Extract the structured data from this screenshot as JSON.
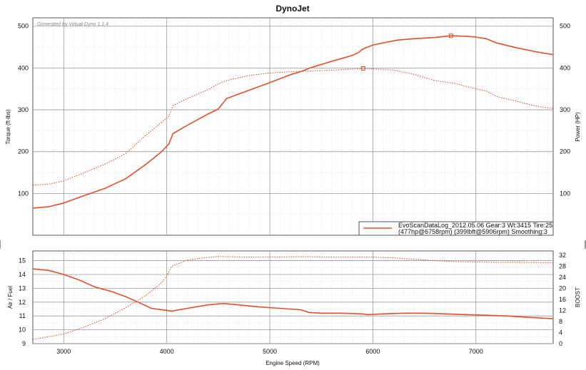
{
  "colors": {
    "series": "#e2502b",
    "grid_major": "#9a9a9a",
    "grid_minor": "#cfcfcf",
    "background": "#ffffff"
  },
  "header": {
    "title": "DynoJet"
  },
  "watermark": "Generated by Virtual Dyno 1.1.4",
  "legend": {
    "line1": "EvoScanDataLog_2012.05.06 Gear:3 Wt:3415 Tire:25",
    "line2": "(477hp@6758rpm) (399lbft@5906rpm) Smoothing:3"
  },
  "chart_data": [
    {
      "type": "line",
      "panel": "top",
      "ylabel_left": "Torque (ft-lbs)",
      "ylabel_right": "Power (HP)",
      "xlim": [
        2700,
        7750
      ],
      "ylim_left": [
        0,
        520
      ],
      "ylim_right": [
        0,
        520
      ],
      "y_ticks_left": [
        "100",
        "200",
        "300",
        "400",
        "500"
      ],
      "y_ticks_right": [
        "100",
        "200",
        "300",
        "400",
        "500"
      ],
      "grid": true,
      "legend_position": "bottom-right",
      "series": [
        {
          "axis": "left",
          "style": "solid",
          "x": [
            2700,
            2850,
            3000,
            3200,
            3400,
            3600,
            3800,
            3950,
            4020,
            4060,
            4200,
            4400,
            4500,
            4580,
            4800,
            5000,
            5200,
            5320,
            5400,
            5600,
            5800,
            5860,
            5900,
            6000,
            6200,
            6250,
            6400,
            6600,
            6758,
            6900,
            7000,
            7100,
            7200,
            7400,
            7600,
            7750
          ],
          "y": [
            65,
            68,
            77,
            95,
            112,
            135,
            170,
            200,
            218,
            243,
            263,
            290,
            302,
            327,
            347,
            365,
            384,
            393,
            401,
            416,
            430,
            437,
            445,
            455,
            465,
            467,
            470,
            473,
            477,
            476,
            474,
            470,
            460,
            448,
            438,
            432
          ]
        },
        {
          "axis": "left",
          "style": "dotted",
          "x": [
            2700,
            2850,
            3000,
            3200,
            3400,
            3600,
            3800,
            3950,
            4020,
            4060,
            4200,
            4400,
            4500,
            4580,
            4800,
            5000,
            5200,
            5400,
            5600,
            5800,
            5906,
            6000,
            6200,
            6400,
            6600,
            6800,
            7000,
            7100,
            7200,
            7400,
            7600,
            7750
          ],
          "y": [
            120,
            122,
            130,
            150,
            170,
            195,
            240,
            270,
            285,
            310,
            327,
            348,
            362,
            370,
            382,
            388,
            391,
            393,
            395,
            397,
            399,
            398,
            395,
            385,
            370,
            363,
            350,
            345,
            332,
            320,
            308,
            303
          ]
        }
      ]
    },
    {
      "type": "line",
      "panel": "bottom",
      "xlabel": "Engine Speed (RPM)",
      "ylabel_left": "Air / Fuel",
      "ylabel_right": "BOOST",
      "x_ticks": [
        "3000",
        "4000",
        "5000",
        "6000",
        "7000"
      ],
      "xlim": [
        2700,
        7750
      ],
      "ylim_left": [
        9,
        15.7
      ],
      "ylim_right": [
        0,
        33.5
      ],
      "y_ticks_left": [
        "9",
        "10",
        "11",
        "12",
        "13",
        "14",
        "15"
      ],
      "y_ticks_right": [
        "0",
        "4",
        "8",
        "12",
        "16",
        "20",
        "24",
        "28",
        "32"
      ],
      "grid": true,
      "series": [
        {
          "axis": "left",
          "style": "solid",
          "x": [
            2700,
            2850,
            3000,
            3150,
            3300,
            3450,
            3600,
            3750,
            3850,
            4000,
            4050,
            4200,
            4400,
            4550,
            4700,
            4900,
            5100,
            5300,
            5380,
            5500,
            5700,
            5900,
            5950,
            6100,
            6300,
            6500,
            6700,
            6900,
            7100,
            7300,
            7500,
            7750
          ],
          "y": [
            14.4,
            14.3,
            14.0,
            13.6,
            13.1,
            12.8,
            12.4,
            11.9,
            11.55,
            11.4,
            11.35,
            11.55,
            11.8,
            11.9,
            11.8,
            11.65,
            11.55,
            11.45,
            11.25,
            11.2,
            11.2,
            11.15,
            11.1,
            11.15,
            11.2,
            11.2,
            11.15,
            11.1,
            11.05,
            11.0,
            10.9,
            10.8
          ]
        },
        {
          "axis": "right",
          "style": "dotted",
          "x": [
            2700,
            2850,
            3000,
            3200,
            3400,
            3600,
            3800,
            3950,
            4000,
            4050,
            4200,
            4400,
            4500,
            4600,
            4800,
            5000,
            5200,
            5400,
            5600,
            5800,
            6000,
            6200,
            6400,
            6600,
            6800,
            7000,
            7200,
            7400,
            7600,
            7750
          ],
          "y": [
            1.5,
            2.5,
            3.5,
            6,
            9,
            13,
            17.5,
            22,
            24.5,
            28,
            30.2,
            31.2,
            31.5,
            31.4,
            31.3,
            31.3,
            31.4,
            31.4,
            31.3,
            31.3,
            31.3,
            31.0,
            30.5,
            30.0,
            29.6,
            29.5,
            29.4,
            29.4,
            29.3,
            29.3
          ]
        }
      ]
    }
  ]
}
